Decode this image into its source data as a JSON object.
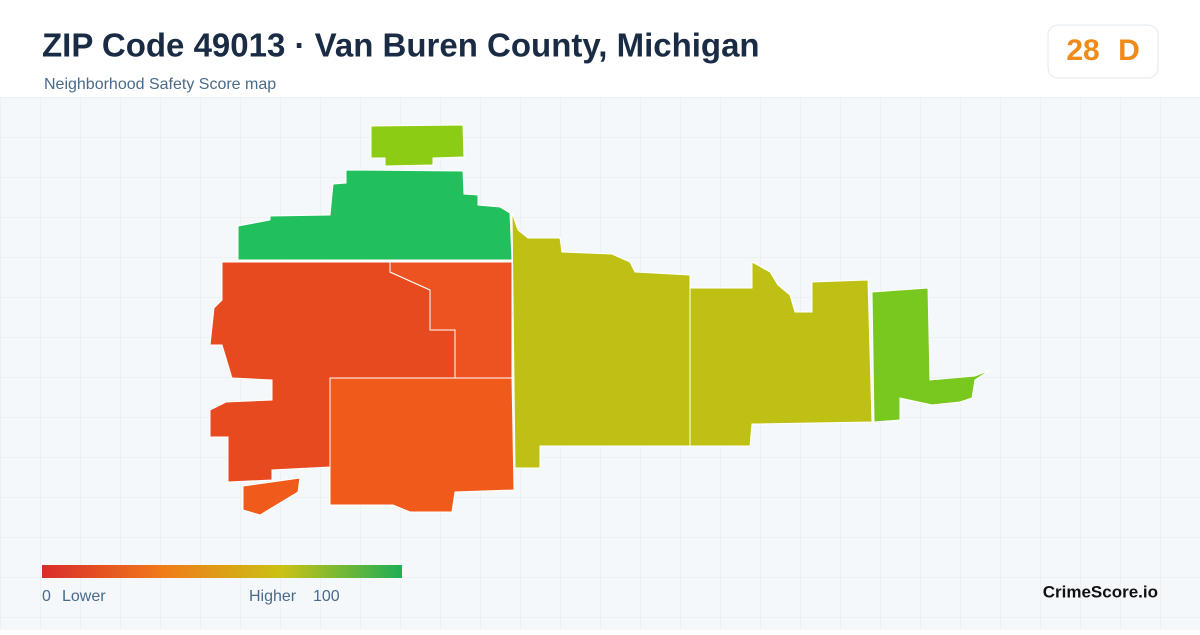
{
  "header": {
    "title": "ZIP Code 49013 · Van Buren County, Michigan",
    "subtitle": "Neighborhood Safety Score map"
  },
  "badge": {
    "score": 28,
    "grade": "D",
    "color": "#f08a1a"
  },
  "regions": [
    {
      "color": "#8ccc14"
    },
    {
      "color": "#22c05c"
    },
    {
      "color": "#e84a20"
    },
    {
      "color": "#ec5320"
    },
    {
      "color": "#ec5320"
    },
    {
      "color": "#f05a1a"
    },
    {
      "color": "#f05a1a"
    },
    {
      "color": "#bfc014"
    },
    {
      "color": "#bfc014"
    },
    {
      "color": "#78c820"
    }
  ],
  "legend": {
    "min": 0,
    "min_label": "Lower",
    "max_label": "Higher",
    "max": 100,
    "colors": [
      "#d92b2b",
      "#f07a1a",
      "#c9c214",
      "#1fae55"
    ]
  },
  "brand": "CrimeScore.io"
}
